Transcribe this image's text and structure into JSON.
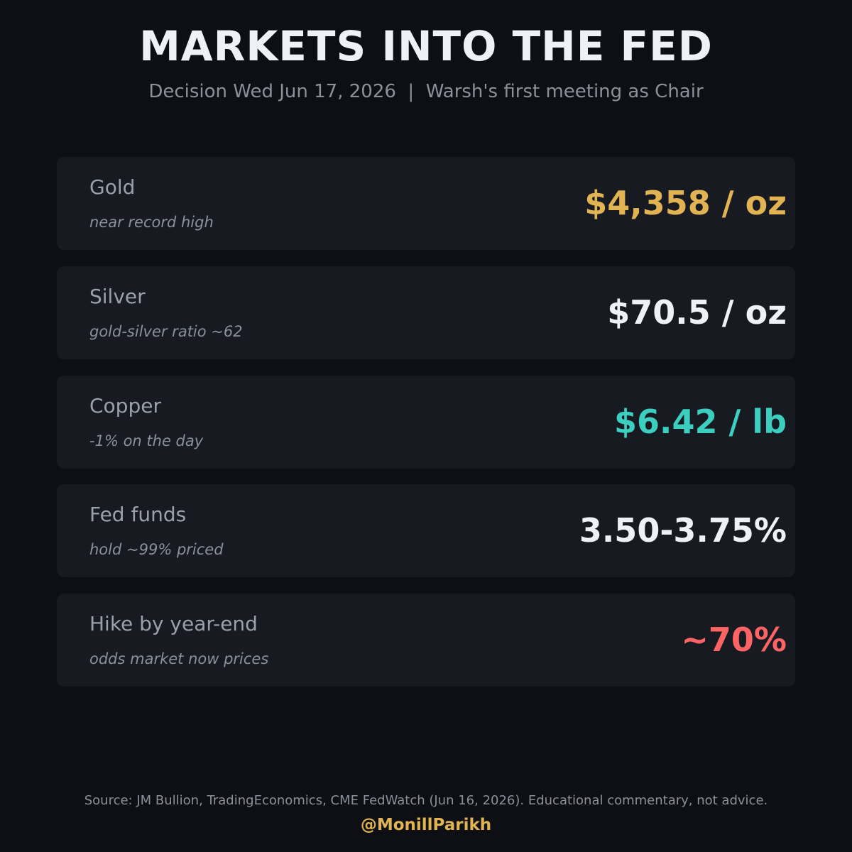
{
  "header": {
    "title": "MARKETS INTO THE FED",
    "subtitle": "Decision Wed Jun 17, 2026  |  Warsh's first meeting as Chair"
  },
  "cards": [
    {
      "label": "Gold",
      "note": "near record high",
      "value": "$4,358 / oz",
      "value_color": "#e2b352"
    },
    {
      "label": "Silver",
      "note": "gold-silver ratio ~62",
      "value": "$70.5 / oz",
      "value_color": "#eef2f8"
    },
    {
      "label": "Copper",
      "note": "-1% on the day",
      "value": "$6.42 / lb",
      "value_color": "#3ccfbf"
    },
    {
      "label": "Fed funds",
      "note": "hold ~99% priced",
      "value": "3.50-3.75%",
      "value_color": "#eef2f8"
    },
    {
      "label": "Hike by year-end",
      "note": "odds market now prices",
      "value": "~70%",
      "value_color": "#ff6464"
    }
  ],
  "footer": {
    "source": "Source: JM Bullion, TradingEconomics, CME FedWatch (Jun 16, 2026). Educational commentary, not advice.",
    "handle": "@MonillParikh"
  },
  "colors": {
    "background": "#0d0f14",
    "card": "#171a20",
    "accent_gold": "#e2b352"
  }
}
